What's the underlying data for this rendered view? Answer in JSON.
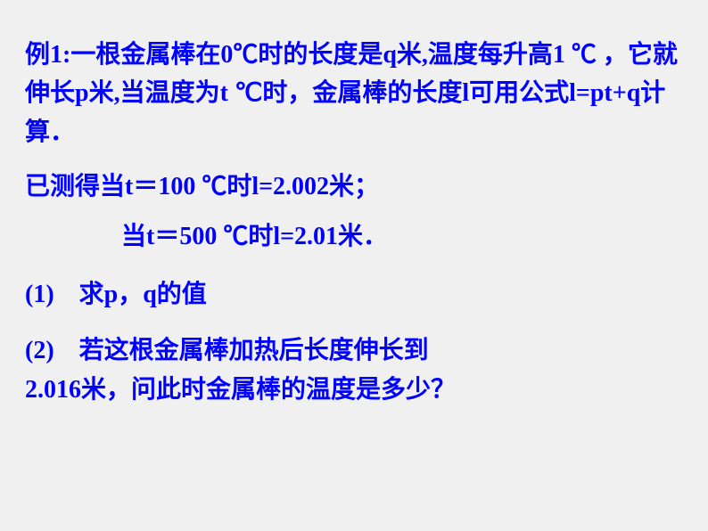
{
  "text_color": "#0000ff",
  "background_color": "#f0f0f0",
  "font_size": 28,
  "font_weight": "bold",
  "paragraphs": {
    "p1": "例1:一根金属棒在0℃时的长度是q米,温度每升高1 ℃ ，它就伸长p米,当温度为t ℃时，金属棒的长度l可用公式l=pt+q计算．",
    "p2": "已测得当t＝100 ℃时l=2.002米；",
    "p3": "当t＝500 ℃时l=2.01米．",
    "p4": "(1)　求p，q的值",
    "p5a": "(2)　若这根金属棒加热后长度伸长到",
    "p5b": "2.016米，问此时金属棒的温度是多少？"
  }
}
